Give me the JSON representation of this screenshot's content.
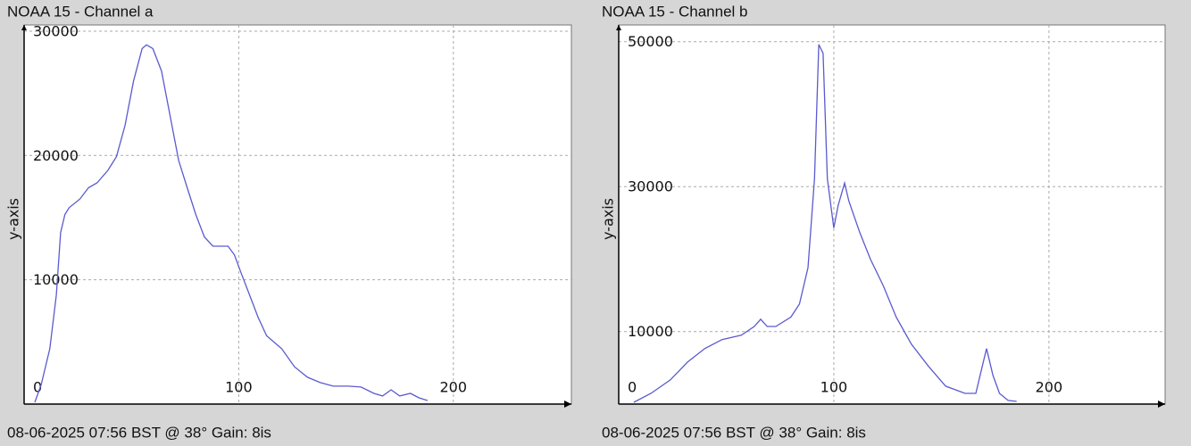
{
  "chart_data": [
    {
      "type": "line",
      "title": "NOAA 15 - Channel a",
      "ylabel": "y-axis",
      "footer": "08-06-2025 07:56 BST @ 38° Gain: 8is",
      "x": [
        5,
        8,
        12,
        15,
        17,
        19,
        21,
        26,
        30,
        34,
        39,
        43,
        47,
        51,
        55,
        57,
        60,
        64,
        68,
        72,
        76,
        80,
        84,
        88,
        95,
        98,
        101,
        105,
        109,
        113,
        120,
        126,
        132,
        138,
        144,
        151,
        157,
        163,
        167,
        171,
        175,
        180,
        184,
        188
      ],
      "values": [
        140,
        1580,
        4460,
        8780,
        13800,
        15250,
        15800,
        16500,
        17400,
        17800,
        18800,
        19900,
        22400,
        26000,
        28600,
        28900,
        28600,
        26800,
        23200,
        19600,
        17400,
        15250,
        13450,
        12700,
        12700,
        12000,
        10600,
        8800,
        7000,
        5500,
        4460,
        3000,
        2160,
        1730,
        1440,
        1440,
        1370,
        860,
        650,
        1150,
        650,
        860,
        500,
        290
      ],
      "color": "#5a5ad0",
      "xlim": [
        0,
        255
      ],
      "ylim": [
        0,
        30500
      ],
      "xticks": [
        0,
        100,
        200
      ],
      "yticks": [
        10000,
        20000,
        30000
      ],
      "grid": true
    },
    {
      "type": "line",
      "title": "NOAA 15 - Channel b",
      "ylabel": "y-axis",
      "footer": "08-06-2025 07:56 BST @ 38° Gain: 8is",
      "x": [
        7,
        15,
        24,
        32,
        40,
        48,
        57,
        63,
        66,
        69,
        73,
        80,
        84,
        88,
        91,
        93,
        95,
        97,
        100,
        102,
        105,
        107,
        112,
        117,
        123,
        129,
        136,
        144,
        152,
        161,
        166,
        169,
        171,
        174,
        177,
        181,
        185
      ],
      "values": [
        250,
        1480,
        3330,
        5800,
        7650,
        8900,
        9500,
        10700,
        11700,
        10700,
        10700,
        12000,
        13800,
        18800,
        31100,
        49600,
        48400,
        31100,
        24300,
        27400,
        30500,
        28000,
        23700,
        20000,
        16300,
        12000,
        8300,
        5200,
        2470,
        1480,
        1480,
        5200,
        7650,
        3950,
        1480,
        500,
        370
      ],
      "color": "#5a5ad0",
      "xlim": [
        0,
        254
      ],
      "ylim": [
        0,
        52300
      ],
      "xticks": [
        0,
        100,
        200
      ],
      "yticks": [
        10000,
        30000,
        50000
      ],
      "grid": true
    }
  ]
}
